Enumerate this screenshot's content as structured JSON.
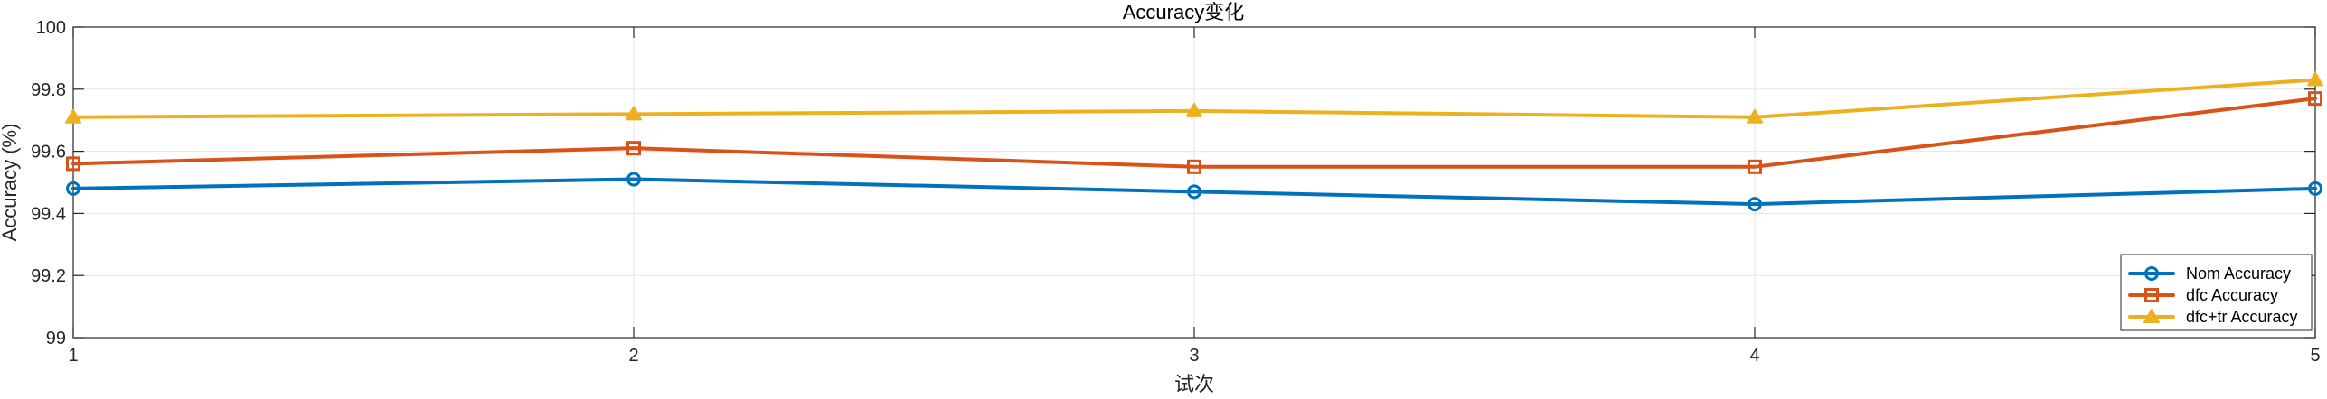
{
  "chart_data": {
    "type": "line",
    "title": "Accuracy变化",
    "xlabel": "试次",
    "ylabel": "Accuracy (%)",
    "x": [
      1,
      2,
      3,
      4,
      5
    ],
    "xlim": [
      1,
      5
    ],
    "ylim": [
      99,
      100
    ],
    "xticks": [
      "1",
      "2",
      "3",
      "4",
      "5"
    ],
    "yticks": [
      "99",
      "99.2",
      "99.4",
      "99.6",
      "99.8",
      "100"
    ],
    "grid": true,
    "legend_position": "bottom-right",
    "series": [
      {
        "name": "Nom Accuracy",
        "values": [
          99.48,
          99.51,
          99.47,
          99.43,
          99.48
        ],
        "color": "#0072BD",
        "marker": "circle"
      },
      {
        "name": "dfc Accuracy",
        "values": [
          99.56,
          99.61,
          99.55,
          99.55,
          99.77
        ],
        "color": "#D95319",
        "marker": "square"
      },
      {
        "name": "dfc+tr Accuracy",
        "values": [
          99.71,
          99.72,
          99.73,
          99.71,
          99.83
        ],
        "color": "#EDB120",
        "marker": "triangle"
      }
    ]
  }
}
